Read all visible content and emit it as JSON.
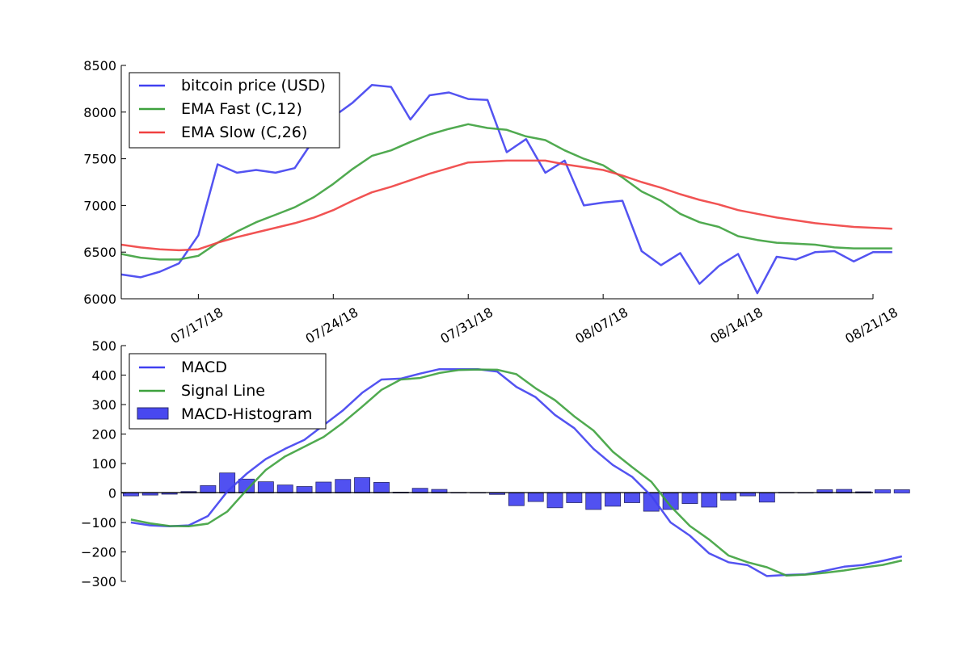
{
  "colors": {
    "price": "#4040f0",
    "ema_fast": "#3da13d",
    "ema_slow": "#f04040",
    "macd": "#4040f0",
    "signal": "#3da13d",
    "histogram": "#4848f0"
  },
  "chart_data": [
    {
      "type": "line",
      "x_start": "2018-07-13",
      "x_step_days": 1,
      "xlim": [
        "2018-07-13",
        "2018-08-21"
      ],
      "xticks": [
        "07/17/18",
        "07/24/18",
        "07/31/18",
        "08/07/18",
        "08/14/18",
        "08/21/18"
      ],
      "ylim": [
        6000,
        8500
      ],
      "yticks": [
        "6000",
        "6500",
        "7000",
        "7500",
        "8000",
        "8500"
      ],
      "grid": false,
      "legend_position": "top-left",
      "series": [
        {
          "name": "bitcoin price (USD)",
          "color": "#4040f0",
          "values": [
            6260,
            6230,
            6290,
            6380,
            6680,
            7440,
            7350,
            7380,
            7350,
            7400,
            7710,
            7950,
            8100,
            8290,
            8270,
            7920,
            8180,
            8210,
            8140,
            8130,
            7570,
            7710,
            7350,
            7480,
            7000,
            7030,
            7050,
            6510,
            6360,
            6490,
            6160,
            6350,
            6480,
            6060,
            6450,
            6420,
            6500,
            6510,
            6400,
            6500,
            6500
          ]
        },
        {
          "name": "EMA Fast (C,12)",
          "color": "#3da13d",
          "values": [
            6480,
            6440,
            6420,
            6420,
            6460,
            6600,
            6720,
            6820,
            6900,
            6980,
            7090,
            7230,
            7390,
            7530,
            7590,
            7680,
            7760,
            7820,
            7870,
            7830,
            7810,
            7740,
            7700,
            7590,
            7500,
            7430,
            7300,
            7150,
            7050,
            6910,
            6820,
            6770,
            6670,
            6630,
            6600,
            6590,
            6580,
            6550,
            6540,
            6540,
            6540
          ]
        },
        {
          "name": "EMA Slow (C,26)",
          "color": "#f04040",
          "values": [
            6580,
            6550,
            6530,
            6520,
            6530,
            6600,
            6660,
            6710,
            6760,
            6810,
            6870,
            6950,
            7050,
            7140,
            7200,
            7270,
            7340,
            7400,
            7460,
            7470,
            7480,
            7480,
            7480,
            7440,
            7410,
            7380,
            7320,
            7250,
            7190,
            7120,
            7060,
            7010,
            6950,
            6910,
            6870,
            6840,
            6810,
            6790,
            6770,
            6760,
            6750
          ]
        }
      ]
    },
    {
      "type": "line",
      "x_start": "2018-07-13",
      "x_step_days": 1,
      "xlim": [
        "2018-07-13",
        "2018-08-21"
      ],
      "ylim": [
        -300,
        500
      ],
      "yticks": [
        "−300",
        "−200",
        "−100",
        "0",
        "100",
        "200",
        "300",
        "400",
        "500"
      ],
      "grid": false,
      "legend_position": "top-left",
      "series": [
        {
          "name": "MACD",
          "color": "#4040f0",
          "values": [
            -100,
            -110,
            -113,
            -110,
            -78,
            5,
            65,
            115,
            150,
            180,
            230,
            280,
            340,
            385,
            388,
            405,
            420,
            420,
            420,
            412,
            360,
            325,
            265,
            220,
            150,
            95,
            55,
            -10,
            -100,
            -145,
            -205,
            -235,
            -245,
            -282,
            -278,
            -276,
            -264,
            -250,
            -244,
            -230,
            -215
          ]
        },
        {
          "name": "Signal Line",
          "color": "#3da13d",
          "values": [
            -90,
            -103,
            -112,
            -113,
            -104,
            -63,
            10,
            78,
            124,
            157,
            190,
            238,
            293,
            350,
            385,
            390,
            407,
            417,
            419,
            418,
            403,
            355,
            315,
            260,
            212,
            140,
            88,
            38,
            -45,
            -112,
            -158,
            -212,
            -235,
            -252,
            -280,
            -277,
            -271,
            -263,
            -253,
            -244,
            -229
          ]
        }
      ],
      "histogram": {
        "name": "MACD-Histogram",
        "color": "#4848f0",
        "values": [
          -10,
          -7,
          -4,
          5,
          25,
          68,
          47,
          38,
          27,
          22,
          37,
          46,
          52,
          36,
          3,
          16,
          12,
          2,
          1,
          -5,
          -43,
          -29,
          -50,
          -33,
          -56,
          -45,
          -33,
          -62,
          -56,
          -36,
          -48,
          -24,
          -10,
          -31,
          2,
          1,
          11,
          12,
          4,
          11,
          11
        ]
      }
    }
  ]
}
